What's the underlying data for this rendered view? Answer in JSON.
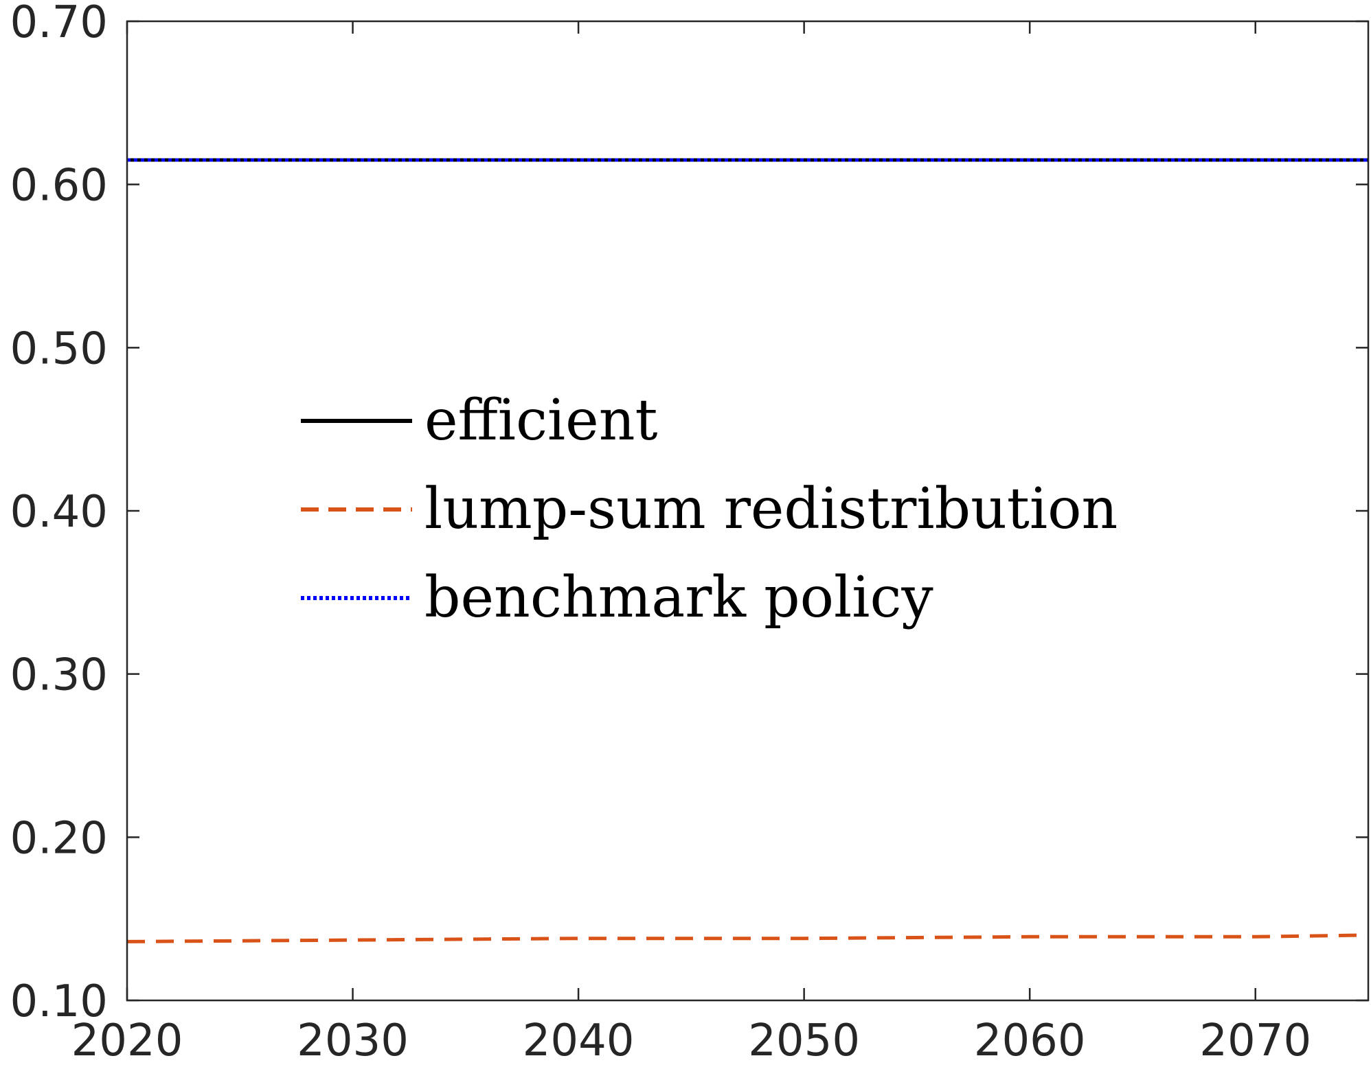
{
  "chart_data": {
    "type": "line",
    "title": "",
    "xlabel": "",
    "ylabel": "",
    "xlim": [
      2020,
      2075
    ],
    "ylim": [
      0.1,
      0.7
    ],
    "x_ticks": [
      2020,
      2030,
      2040,
      2050,
      2060,
      2070
    ],
    "x_tick_labels": [
      "2020",
      "2030",
      "2040",
      "2050",
      "2060",
      "2070"
    ],
    "y_ticks": [
      0.1,
      0.2,
      0.3,
      0.4,
      0.5,
      0.6,
      0.7
    ],
    "y_tick_labels": [
      "0.10",
      "0.20",
      "0.30",
      "0.40",
      "0.50",
      "0.60",
      "0.70"
    ],
    "grid": false,
    "legend_position": "center-left",
    "series": [
      {
        "name": "efficient",
        "color": "#000000",
        "style": "solid",
        "x": [
          2020,
          2030,
          2040,
          2050,
          2060,
          2070,
          2075
        ],
        "y": [
          0.615,
          0.615,
          0.615,
          0.615,
          0.615,
          0.615,
          0.615
        ]
      },
      {
        "name": "lump-sum redistribution",
        "color": "#D95319",
        "style": "dashed",
        "x": [
          2020,
          2030,
          2040,
          2050,
          2060,
          2070,
          2075
        ],
        "y": [
          0.136,
          0.137,
          0.138,
          0.138,
          0.139,
          0.139,
          0.14
        ]
      },
      {
        "name": "benchmark policy",
        "color": "#0000FF",
        "style": "dotted",
        "x": [
          2020,
          2030,
          2040,
          2050,
          2060,
          2070,
          2075
        ],
        "y": [
          0.615,
          0.615,
          0.615,
          0.615,
          0.615,
          0.615,
          0.615
        ]
      }
    ]
  }
}
